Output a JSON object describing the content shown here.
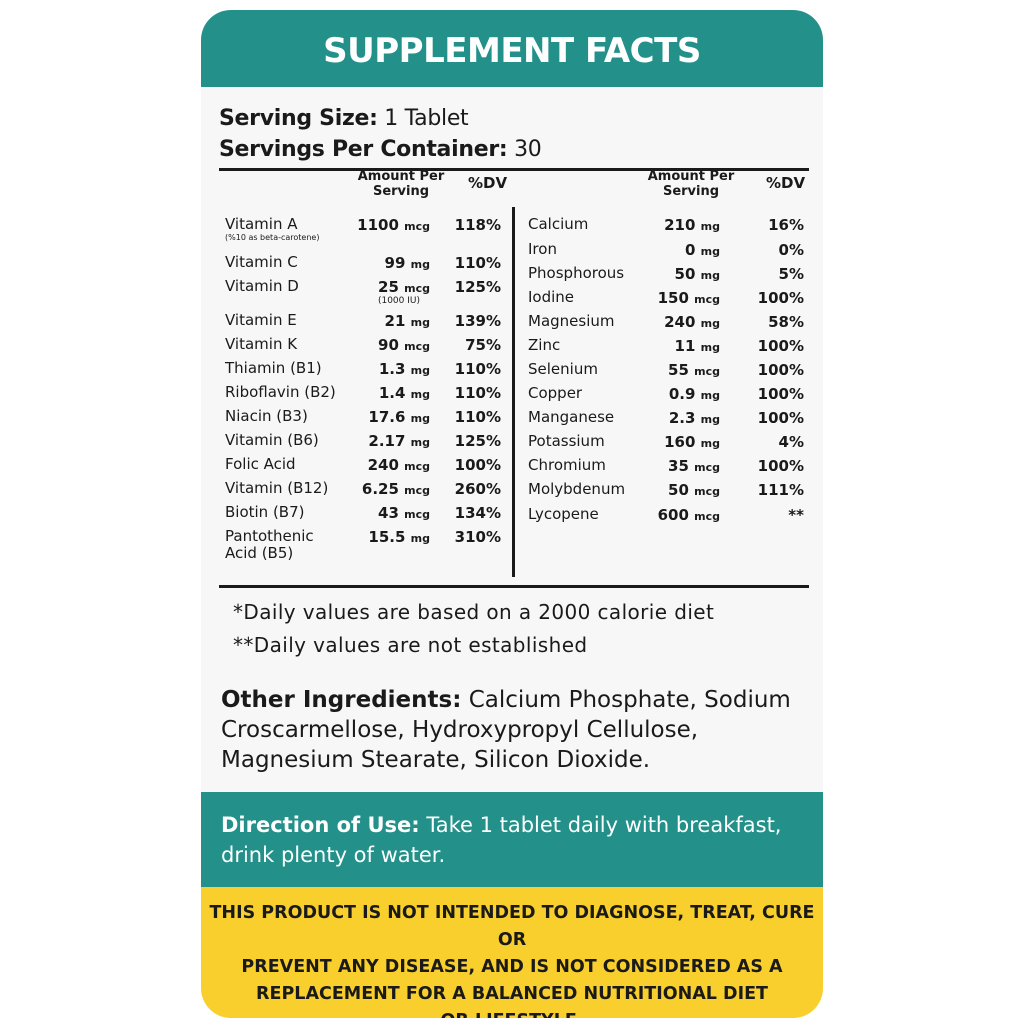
{
  "title": "SUPPLEMENT FACTS",
  "serving": {
    "size_label": "Serving Size:",
    "size_value": "1 Tablet",
    "per_container_label": "Servings Per Container:",
    "per_container_value": "30"
  },
  "table": {
    "amount_header_line1": "Amount Per",
    "amount_header_line2": "Serving",
    "dv_header": "%DV",
    "left": [
      {
        "name": "Vitamin A",
        "sub": "(%10 as beta-carotene)",
        "amount": "1100",
        "unit": "mcg",
        "amount_sub": "",
        "dv": "118%"
      },
      {
        "name": "Vitamin C",
        "sub": "",
        "amount": "99",
        "unit": "mg",
        "amount_sub": "",
        "dv": "110%"
      },
      {
        "name": "Vitamin D",
        "sub": "",
        "amount": "25",
        "unit": "mcg",
        "amount_sub": "(1000 IU)",
        "dv": "125%"
      },
      {
        "name": "Vitamin E",
        "sub": "",
        "amount": "21",
        "unit": "mg",
        "amount_sub": "",
        "dv": "139%"
      },
      {
        "name": "Vitamin K",
        "sub": "",
        "amount": "90",
        "unit": "mcg",
        "amount_sub": "",
        "dv": "75%"
      },
      {
        "name": "Thiamin (B1)",
        "sub": "",
        "amount": "1.3",
        "unit": "mg",
        "amount_sub": "",
        "dv": "110%"
      },
      {
        "name": "Riboflavin (B2)",
        "sub": "",
        "amount": "1.4",
        "unit": "mg",
        "amount_sub": "",
        "dv": "110%"
      },
      {
        "name": "Niacin (B3)",
        "sub": "",
        "amount": "17.6",
        "unit": "mg",
        "amount_sub": "",
        "dv": "110%"
      },
      {
        "name": "Vitamin (B6)",
        "sub": "",
        "amount": "2.17",
        "unit": "mg",
        "amount_sub": "",
        "dv": "125%"
      },
      {
        "name": "Folic Acid",
        "sub": "",
        "amount": "240",
        "unit": "mcg",
        "amount_sub": "",
        "dv": "100%"
      },
      {
        "name": "Vitamin (B12)",
        "sub": "",
        "amount": "6.25",
        "unit": "mcg",
        "amount_sub": "",
        "dv": "260%"
      },
      {
        "name": "Biotin (B7)",
        "sub": "",
        "amount": "43",
        "unit": "mcg",
        "amount_sub": "",
        "dv": "134%"
      },
      {
        "name": "Pantothenic",
        "sub": "Acid (B5)",
        "amount": "15.5",
        "unit": "mg",
        "amount_sub": "",
        "dv": "310%"
      }
    ],
    "right": [
      {
        "name": "Calcium",
        "amount": "210",
        "unit": "mg",
        "dv": "16%"
      },
      {
        "name": "Iron",
        "amount": "0",
        "unit": "mg",
        "dv": "0%"
      },
      {
        "name": "Phosphorous",
        "amount": "50",
        "unit": "mg",
        "dv": "5%"
      },
      {
        "name": "Iodine",
        "amount": "150",
        "unit": "mcg",
        "dv": "100%"
      },
      {
        "name": "Magnesium",
        "amount": "240",
        "unit": "mg",
        "dv": "58%"
      },
      {
        "name": "Zinc",
        "amount": "11",
        "unit": "mg",
        "dv": "100%"
      },
      {
        "name": "Selenium",
        "amount": "55",
        "unit": "mcg",
        "dv": "100%"
      },
      {
        "name": "Copper",
        "amount": "0.9",
        "unit": "mg",
        "dv": "100%"
      },
      {
        "name": "Manganese",
        "amount": "2.3",
        "unit": "mg",
        "dv": "100%"
      },
      {
        "name": "Potassium",
        "amount": "160",
        "unit": "mg",
        "dv": "4%"
      },
      {
        "name": "Chromium",
        "amount": "35",
        "unit": "mcg",
        "dv": "100%"
      },
      {
        "name": "Molybdenum",
        "amount": "50",
        "unit": "mcg",
        "dv": "111%"
      },
      {
        "name": "Lycopene",
        "amount": "600",
        "unit": "mcg",
        "dv": "**"
      }
    ]
  },
  "notes": {
    "daily_values": "*Daily values are based on a 2000 calorie diet",
    "not_established": "**Daily values are not established"
  },
  "ingredients": {
    "label": "Other Ingredients:",
    "text": "Calcium Phosphate, Sodium Croscarmellose, Hydroxypropyl Cellulose, Magnesium Stearate, Silicon Dioxide."
  },
  "direction": {
    "label": "Direction of Use:",
    "text": "Take 1 tablet daily with breakfast, drink plenty of water."
  },
  "disclaimer": {
    "line1": "THIS PRODUCT IS NOT INTENDED TO DIAGNOSE, TREAT, CURE OR",
    "line2": "PREVENT ANY DISEASE, AND IS NOT CONSIDERED AS A",
    "line3": "REPLACEMENT FOR A BALANCED NUTRITIONAL DIET",
    "line4": "OR LIFESTYLE."
  },
  "colors": {
    "teal": "#23918a",
    "yellow": "#f8cf2c",
    "panel": "#f7f7f7"
  }
}
